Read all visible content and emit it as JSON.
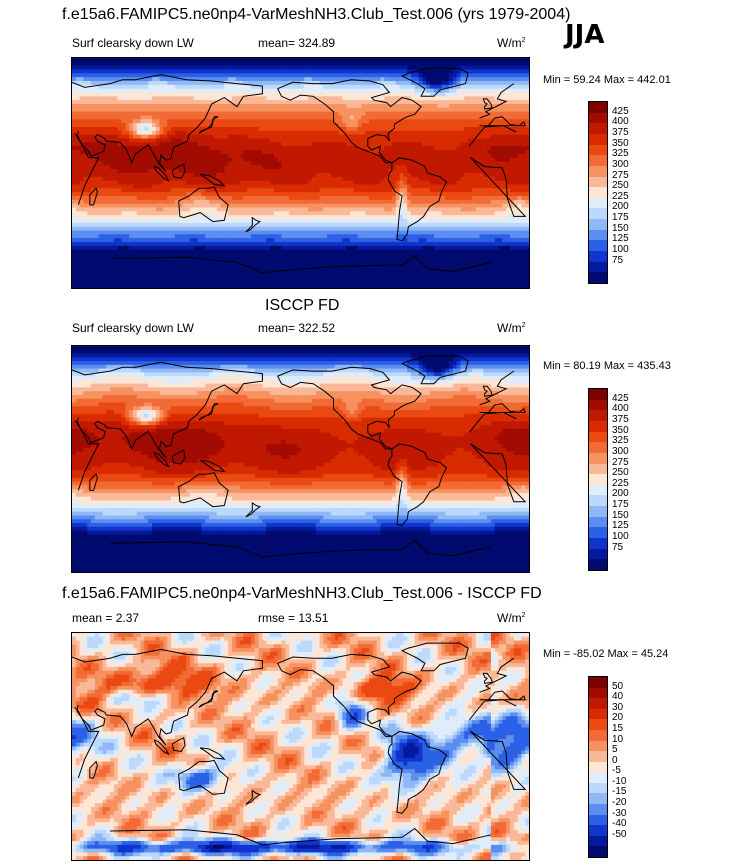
{
  "header": {
    "title": "f.e15a6.FAMIPC5.ne0np4-VarMeshNH3.Club_Test.006 (yrs 1979-2004)",
    "season": "JJA"
  },
  "panels": [
    {
      "name": "model",
      "title": "",
      "left_label": "Surf clearsky down LW",
      "center_label": "mean= 324.89",
      "units": "W/m",
      "units_sup": "2",
      "minmax": "Min =  59.24 Max = 442.01",
      "colorbar_labels": [
        "425",
        "400",
        "375",
        "350",
        "325",
        "300",
        "275",
        "250",
        "225",
        "200",
        "175",
        "150",
        "125",
        "100",
        "75"
      ],
      "colors": [
        "#7d0000",
        "#a10b00",
        "#c11800",
        "#d92b00",
        "#ea4a12",
        "#f26a35",
        "#f6925f",
        "#f9b999",
        "#fde6d5",
        "#dfedfb",
        "#bcd8fa",
        "#8fb8f5",
        "#5c8eef",
        "#2b61e6",
        "#1034cd",
        "#051a9e",
        "#010a6e"
      ]
    },
    {
      "name": "obs",
      "title": "ISCCP FD",
      "left_label": "Surf clearsky down LW",
      "center_label": "mean= 322.52",
      "units": "W/m",
      "units_sup": "2",
      "minmax": "Min =  80.19 Max = 435.43",
      "colorbar_labels": [
        "425",
        "400",
        "375",
        "350",
        "325",
        "300",
        "275",
        "250",
        "225",
        "200",
        "175",
        "150",
        "125",
        "100",
        "75"
      ],
      "colors": [
        "#7d0000",
        "#a10b00",
        "#c11800",
        "#d92b00",
        "#ea4a12",
        "#f26a35",
        "#f6925f",
        "#f9b999",
        "#fde6d5",
        "#dfedfb",
        "#bcd8fa",
        "#8fb8f5",
        "#5c8eef",
        "#2b61e6",
        "#1034cd",
        "#051a9e",
        "#010a6e"
      ]
    },
    {
      "name": "diff",
      "title": "f.e15a6.FAMIPC5.ne0np4-VarMeshNH3.Club_Test.006 - ISCCP FD",
      "left_label": "mean =   2.37",
      "center_label": "rmse =  13.51",
      "units": "W/m",
      "units_sup": "2",
      "minmax": "Min = -85.02 Max =  45.24",
      "colorbar_labels": [
        "50",
        "40",
        "30",
        "20",
        "15",
        "10",
        "5",
        "0",
        "-5",
        "-10",
        "-15",
        "-20",
        "-30",
        "-40",
        "-50"
      ],
      "colors": [
        "#7d0000",
        "#a10b00",
        "#c11800",
        "#d92b00",
        "#ea4a12",
        "#f26a35",
        "#f6925f",
        "#f9b999",
        "#fde6d5",
        "#dfedfb",
        "#bcd8fa",
        "#8fb8f5",
        "#5c8eef",
        "#2b61e6",
        "#1034cd",
        "#051a9e",
        "#010a6e"
      ]
    }
  ],
  "chart_data": [
    {
      "type": "heatmap",
      "title": "f.e15a6.FAMIPC5.ne0np4-VarMeshNH3.Club_Test.006 (yrs 1979-2004)",
      "variable": "Surf clearsky down LW",
      "season": "JJA",
      "mean": 324.89,
      "min": 59.24,
      "max": 442.01,
      "units": "W/m2",
      "levels": [
        75,
        100,
        125,
        150,
        175,
        200,
        225,
        250,
        275,
        300,
        325,
        350,
        375,
        400,
        425
      ]
    },
    {
      "type": "heatmap",
      "title": "ISCCP FD",
      "variable": "Surf clearsky down LW",
      "mean": 322.52,
      "min": 80.19,
      "max": 435.43,
      "units": "W/m2",
      "levels": [
        75,
        100,
        125,
        150,
        175,
        200,
        225,
        250,
        275,
        300,
        325,
        350,
        375,
        400,
        425
      ]
    },
    {
      "type": "heatmap",
      "title": "f.e15a6.FAMIPC5.ne0np4-VarMeshNH3.Club_Test.006 - ISCCP FD",
      "mean": 2.37,
      "rmse": 13.51,
      "min": -85.02,
      "max": 45.24,
      "units": "W/m2",
      "levels": [
        -50,
        -40,
        -30,
        -20,
        -15,
        -10,
        -5,
        0,
        5,
        10,
        15,
        20,
        30,
        40,
        50
      ]
    }
  ]
}
